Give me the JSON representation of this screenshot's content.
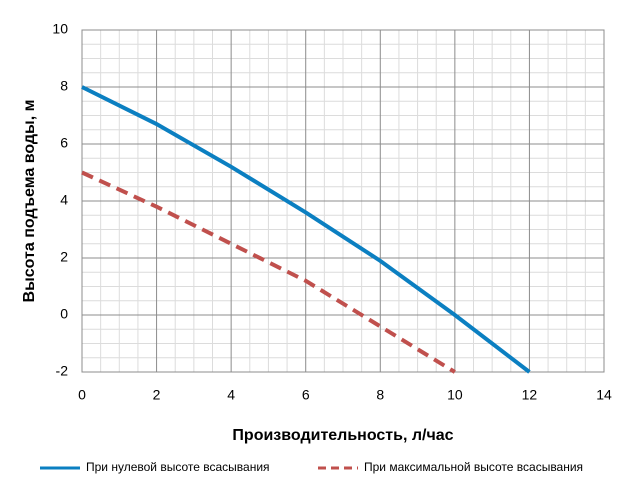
{
  "chart_data": {
    "type": "line",
    "xlabel": "Производительность, л/час",
    "ylabel": "Высота подъема воды, м",
    "x": [
      0,
      2,
      4,
      6,
      8,
      10,
      12
    ],
    "series": [
      {
        "name": "При нулевой высоте всасывания",
        "color": "#0b7fc1",
        "line_style": "solid",
        "values": [
          8,
          6.7,
          5.2,
          3.6,
          1.9,
          0,
          -2
        ]
      },
      {
        "name": "При максимальной высоте всасывания",
        "color": "#c0504d",
        "line_style": "dashed",
        "values": [
          5,
          3.8,
          2.5,
          1.2,
          -0.4,
          -2,
          null
        ]
      }
    ],
    "xlim": [
      0,
      14
    ],
    "xticks": [
      0,
      2,
      4,
      6,
      8,
      10,
      12,
      14
    ],
    "ylim": [
      -2,
      10
    ],
    "yticks": [
      -2,
      0,
      2,
      4,
      6,
      8,
      10
    ],
    "grid": true,
    "minor_grid": true,
    "legend": "bottom"
  }
}
